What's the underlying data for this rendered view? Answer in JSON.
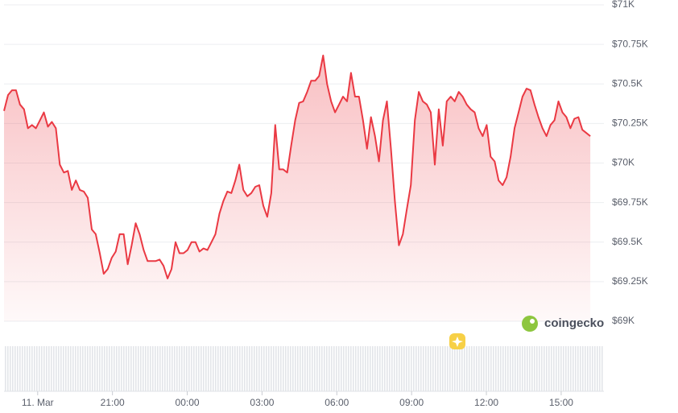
{
  "chart_data": {
    "type": "area",
    "color": "#ea3943",
    "grid": true,
    "watermark": "coingecko",
    "xlim": [
      -1.35,
      22.65
    ],
    "xticks": [
      {
        "value": 0,
        "label": "11. Mar"
      },
      {
        "value": 3,
        "label": "21:00"
      },
      {
        "value": 6,
        "label": "00:00"
      },
      {
        "value": 9,
        "label": "03:00"
      },
      {
        "value": 12,
        "label": "06:00"
      },
      {
        "value": 15,
        "label": "09:00"
      },
      {
        "value": 18,
        "label": "12:00"
      },
      {
        "value": 21,
        "label": "15:00"
      }
    ],
    "ylim": [
      69000,
      71000
    ],
    "yticks": [
      {
        "value": 69000,
        "label": "$69K"
      },
      {
        "value": 69250,
        "label": "$69.25K"
      },
      {
        "value": 69500,
        "label": "$69.5K"
      },
      {
        "value": 69750,
        "label": "$69.75K"
      },
      {
        "value": 70000,
        "label": "$70K"
      },
      {
        "value": 70250,
        "label": "$70.25K"
      },
      {
        "value": 70500,
        "label": "$70.5K"
      },
      {
        "value": 70750,
        "label": "$70.75K"
      },
      {
        "value": 71000,
        "label": "$71K"
      }
    ],
    "x": [
      -1.35,
      -1.19,
      -1.03,
      -0.87,
      -0.71,
      -0.55,
      -0.39,
      -0.23,
      -0.07,
      0.09,
      0.25,
      0.41,
      0.57,
      0.73,
      0.89,
      1.05,
      1.21,
      1.37,
      1.53,
      1.69,
      1.85,
      2.01,
      2.17,
      2.33,
      2.49,
      2.65,
      2.81,
      2.97,
      3.13,
      3.29,
      3.45,
      3.61,
      3.77,
      3.93,
      4.09,
      4.25,
      4.41,
      4.57,
      4.73,
      4.89,
      5.05,
      5.21,
      5.37,
      5.53,
      5.69,
      5.85,
      6.01,
      6.17,
      6.33,
      6.49,
      6.65,
      6.81,
      6.97,
      7.13,
      7.29,
      7.45,
      7.61,
      7.77,
      7.93,
      8.09,
      8.25,
      8.41,
      8.57,
      8.73,
      8.89,
      9.05,
      9.21,
      9.37,
      9.53,
      9.69,
      9.85,
      10.01,
      10.17,
      10.33,
      10.49,
      10.65,
      10.81,
      10.97,
      11.13,
      11.29,
      11.45,
      11.61,
      11.77,
      11.93,
      12.09,
      12.25,
      12.41,
      12.57,
      12.73,
      12.89,
      13.05,
      13.21,
      13.37,
      13.53,
      13.69,
      13.85,
      14.01,
      14.17,
      14.33,
      14.49,
      14.65,
      14.81,
      14.97,
      15.13,
      15.29,
      15.45,
      15.61,
      15.77,
      15.93,
      16.09,
      16.25,
      16.41,
      16.57,
      16.73,
      16.89,
      17.05,
      17.21,
      17.37,
      17.53,
      17.69,
      17.85,
      18.01,
      18.17,
      18.33,
      18.49,
      18.65,
      18.81,
      18.97,
      19.13,
      19.29,
      19.45,
      19.61,
      19.77,
      19.93,
      20.09,
      20.25,
      20.41,
      20.57,
      20.73,
      20.89,
      21.05,
      21.21,
      21.37,
      21.53,
      21.69,
      21.85,
      22.01,
      22.17
    ],
    "values": [
      70330,
      70430,
      70460,
      70460,
      70370,
      70340,
      70220,
      70240,
      70220,
      70270,
      70320,
      70230,
      70260,
      70220,
      69990,
      69940,
      69950,
      69830,
      69890,
      69830,
      69820,
      69780,
      69580,
      69550,
      69430,
      69300,
      69330,
      69400,
      69440,
      69550,
      69550,
      69360,
      69480,
      69620,
      69550,
      69450,
      69380,
      69380,
      69380,
      69390,
      69350,
      69270,
      69330,
      69500,
      69430,
      69430,
      69450,
      69500,
      69500,
      69440,
      69460,
      69450,
      69500,
      69550,
      69680,
      69760,
      69820,
      69810,
      69890,
      69990,
      69830,
      69790,
      69810,
      69850,
      69860,
      69730,
      69660,
      69810,
      70240,
      69960,
      69960,
      69940,
      70110,
      70270,
      70380,
      70390,
      70450,
      70520,
      70520,
      70550,
      70680,
      70500,
      70390,
      70320,
      70370,
      70420,
      70390,
      70570,
      70420,
      70420,
      70270,
      70090,
      70290,
      70170,
      70010,
      70270,
      70390,
      70090,
      69760,
      69480,
      69550,
      69710,
      69860,
      70270,
      70450,
      70390,
      70370,
      70320,
      69990,
      70340,
      70110,
      70390,
      70420,
      70390,
      70450,
      70420,
      70370,
      70340,
      70320,
      70220,
      70170,
      70240,
      70040,
      70010,
      69890,
      69860,
      69910,
      70040,
      70220,
      70320,
      70420,
      70470,
      70460,
      70370,
      70290,
      70220,
      70170,
      70240,
      70270,
      70390,
      70320,
      70290,
      70220,
      70280,
      70290,
      70210,
      70190,
      70170
    ]
  }
}
